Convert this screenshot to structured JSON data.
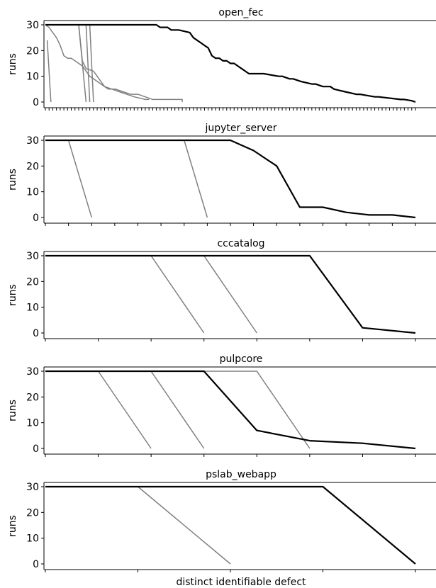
{
  "figure": {
    "xlabel": "distinct identifiable defect"
  },
  "colors": {
    "primary": "#000000",
    "secondary": "#808080"
  },
  "chart_data": [
    {
      "type": "line",
      "title": "open_fec",
      "ylabel": "runs",
      "xlabel": "",
      "ylim": [
        0,
        30
      ],
      "xlim": [
        0,
        100
      ],
      "yticks": [
        0,
        10,
        20,
        30
      ],
      "xticks_count": 100,
      "series": [
        {
          "role": "primary",
          "x": [
            0,
            30,
            31,
            33,
            34,
            36,
            39,
            40,
            41,
            42,
            43,
            44,
            45,
            46,
            47,
            48,
            49,
            50,
            51,
            52,
            53,
            54,
            55,
            56,
            57,
            59,
            63,
            64,
            66,
            67,
            69,
            72,
            73,
            75,
            77,
            78,
            81,
            84,
            85,
            89,
            90,
            96,
            97,
            99,
            100
          ],
          "y": [
            30,
            30,
            29,
            29,
            28,
            28,
            27,
            25,
            24,
            23,
            22,
            21,
            18,
            17,
            17,
            16,
            16,
            15,
            15,
            14,
            13,
            12,
            11,
            11,
            11,
            11,
            10,
            10,
            9,
            9,
            8,
            7,
            7,
            6,
            6,
            5,
            4,
            3,
            3,
            2,
            2,
            1,
            1,
            0.5,
            0
          ]
        },
        {
          "role": "secondary",
          "x": [
            0.5,
            1.5
          ],
          "y": [
            24,
            0
          ]
        },
        {
          "role": "secondary",
          "x": [
            0,
            1,
            2,
            3,
            4,
            5,
            6,
            7,
            8,
            9,
            10,
            11,
            12,
            13,
            14,
            16,
            18,
            20,
            22,
            24,
            27,
            28
          ],
          "y": [
            30,
            29,
            27,
            25,
            22,
            18,
            17,
            17,
            16,
            15,
            14,
            12,
            10,
            9,
            8,
            6,
            5,
            4,
            3,
            2,
            1,
            1
          ]
        },
        {
          "role": "secondary",
          "x": [
            0,
            9,
            10,
            11,
            13,
            14,
            15,
            16,
            17,
            19,
            21,
            23,
            25,
            27,
            29,
            30,
            37,
            37
          ],
          "y": [
            30,
            30,
            16,
            13,
            12,
            10,
            8,
            6,
            5,
            5,
            4,
            3,
            3,
            2,
            1,
            1,
            1,
            0
          ]
        },
        {
          "role": "secondary",
          "x": [
            0,
            9,
            11
          ],
          "y": [
            30,
            30,
            0
          ]
        },
        {
          "role": "secondary",
          "x": [
            0,
            11,
            12
          ],
          "y": [
            30,
            30,
            0
          ]
        },
        {
          "role": "secondary",
          "x": [
            0,
            12,
            13
          ],
          "y": [
            30,
            30,
            0
          ]
        }
      ]
    },
    {
      "type": "line",
      "title": "jupyter_server",
      "ylabel": "runs",
      "xlabel": "",
      "ylim": [
        0,
        30
      ],
      "xlim": [
        0,
        16
      ],
      "yticks": [
        0,
        10,
        20,
        30
      ],
      "xticks_count": 16,
      "series": [
        {
          "role": "primary",
          "x": [
            0,
            8,
            9,
            10,
            11,
            12,
            13,
            14,
            15,
            16
          ],
          "y": [
            30,
            30,
            26,
            20,
            4,
            4,
            2,
            1,
            1,
            0
          ]
        },
        {
          "role": "secondary",
          "x": [
            0,
            1,
            2
          ],
          "y": [
            30,
            30,
            0
          ]
        },
        {
          "role": "secondary",
          "x": [
            0,
            6,
            7
          ],
          "y": [
            30,
            30,
            0
          ]
        }
      ]
    },
    {
      "type": "line",
      "title": "cccatalog",
      "ylabel": "runs",
      "xlabel": "",
      "ylim": [
        0,
        30
      ],
      "xlim": [
        0,
        7
      ],
      "yticks": [
        0,
        10,
        20,
        30
      ],
      "xticks_count": 7,
      "series": [
        {
          "role": "primary",
          "x": [
            0,
            5,
            6,
            7
          ],
          "y": [
            30,
            30,
            2,
            0
          ]
        },
        {
          "role": "secondary",
          "x": [
            0,
            2,
            3
          ],
          "y": [
            30,
            30,
            0
          ]
        },
        {
          "role": "secondary",
          "x": [
            0,
            3,
            4
          ],
          "y": [
            30,
            30,
            0
          ]
        }
      ]
    },
    {
      "type": "line",
      "title": "pulpcore",
      "ylabel": "runs",
      "xlabel": "",
      "ylim": [
        0,
        30
      ],
      "xlim": [
        0,
        7
      ],
      "yticks": [
        0,
        10,
        20,
        30
      ],
      "xticks_count": 7,
      "series": [
        {
          "role": "primary",
          "x": [
            0,
            3,
            4,
            5,
            6,
            7
          ],
          "y": [
            30,
            30,
            7,
            3,
            2,
            0
          ]
        },
        {
          "role": "secondary",
          "x": [
            0,
            1,
            2
          ],
          "y": [
            30,
            30,
            0
          ]
        },
        {
          "role": "secondary",
          "x": [
            0,
            2,
            3
          ],
          "y": [
            30,
            30,
            0
          ]
        },
        {
          "role": "secondary",
          "x": [
            0,
            4,
            5
          ],
          "y": [
            30,
            30,
            0
          ]
        }
      ]
    },
    {
      "type": "line",
      "title": "pslab_webapp",
      "ylabel": "runs",
      "xlabel": "",
      "ylim": [
        0,
        30
      ],
      "xlim": [
        0,
        4
      ],
      "yticks": [
        0,
        10,
        20,
        30
      ],
      "xticks_count": 4,
      "series": [
        {
          "role": "primary",
          "x": [
            0,
            3,
            4
          ],
          "y": [
            30,
            30,
            0
          ]
        },
        {
          "role": "secondary",
          "x": [
            0,
            1,
            2
          ],
          "y": [
            30,
            30,
            0
          ]
        }
      ]
    }
  ]
}
